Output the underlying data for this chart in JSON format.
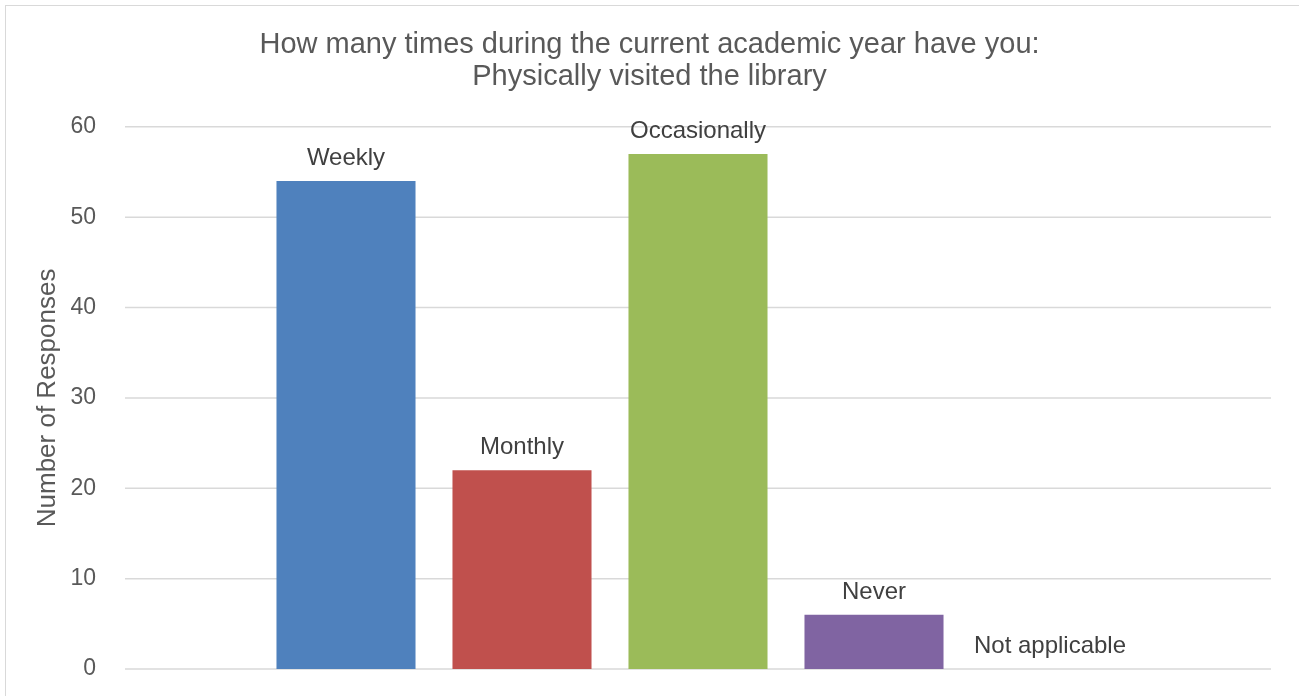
{
  "chart_data": {
    "type": "bar",
    "title": "How many times during the current academic year have you:\nPhysically visited the library",
    "ylabel": "Number of Responses",
    "categories": [
      "Weekly",
      "Monthly",
      "Occasionally",
      "Never",
      "Not applicable"
    ],
    "values": [
      54,
      22,
      57,
      6,
      0
    ],
    "colors": [
      "#4f81bd",
      "#c0504d",
      "#9bbb59",
      "#8064a2",
      "#4bacc6"
    ],
    "ylim": [
      0,
      60
    ],
    "yticks": [
      0,
      10,
      20,
      30,
      40,
      50,
      60
    ],
    "grid": "y"
  }
}
